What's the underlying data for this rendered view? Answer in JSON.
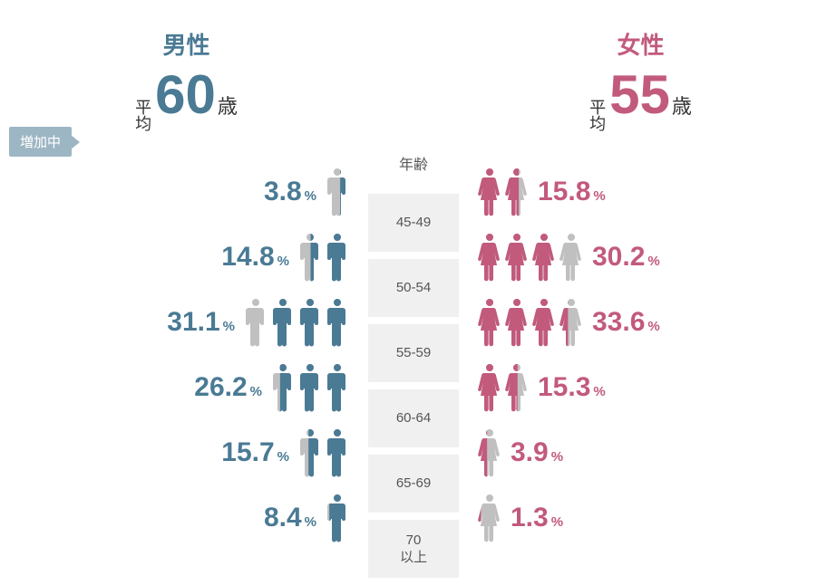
{
  "colors": {
    "male": "#4a7a94",
    "female": "#c25a7c",
    "gray": "#c0c0c0",
    "badge_bg": "#9db6c4",
    "badge_text": "#ffffff",
    "age_bg": "#f0f0f0",
    "age_text": "#555555",
    "text_dark": "#333333",
    "background": "#ffffff"
  },
  "typography": {
    "title_fontsize": 26,
    "avg_number_fontsize": 60,
    "avg_unit_fontsize": 22,
    "avg_label_fontsize": 18,
    "pct_number_fontsize": 30,
    "pct_symbol_fontsize": 15,
    "age_label_fontsize": 15,
    "age_header_fontsize": 16,
    "badge_fontsize": 15
  },
  "icon_unit_percent": 10,
  "age_header": "年齢",
  "age_labels": [
    "45-49",
    "50-54",
    "55-59",
    "60-64",
    "65-69",
    "70\n以上"
  ],
  "badge_text": "増加中",
  "male": {
    "title": "男性",
    "avg_label_top": "平",
    "avg_label_bottom": "均",
    "avg_number": "60",
    "avg_unit": "歳",
    "rows": [
      {
        "pct": "3.8",
        "full": 0,
        "partial": 0.38
      },
      {
        "pct": "14.8",
        "full": 1,
        "partial": 0.48
      },
      {
        "pct": "31.1",
        "full": 3,
        "partial": 0.11
      },
      {
        "pct": "26.2",
        "full": 2,
        "partial": 0.62
      },
      {
        "pct": "15.7",
        "full": 1,
        "partial": 0.57
      },
      {
        "pct": "8.4",
        "full": 0,
        "partial": 0.84
      }
    ]
  },
  "female": {
    "title": "女性",
    "avg_label_top": "平",
    "avg_label_bottom": "均",
    "avg_number": "55",
    "avg_unit": "歳",
    "rows": [
      {
        "pct": "15.8",
        "full": 1,
        "partial": 0.58
      },
      {
        "pct": "30.2",
        "full": 3,
        "partial": 0.02
      },
      {
        "pct": "33.6",
        "full": 3,
        "partial": 0.36
      },
      {
        "pct": "15.3",
        "full": 1,
        "partial": 0.53
      },
      {
        "pct": "3.9",
        "full": 0,
        "partial": 0.39
      },
      {
        "pct": "1.3",
        "full": 0,
        "partial": 0.13
      }
    ]
  },
  "pct_symbol": "%"
}
